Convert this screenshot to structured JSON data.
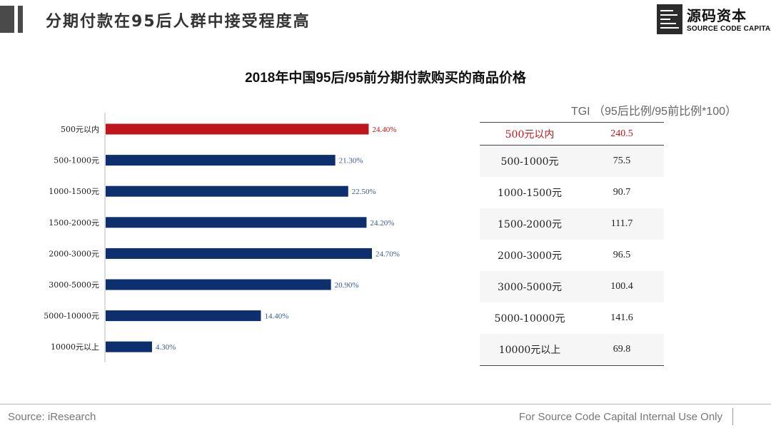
{
  "header": {
    "title": "分期付款在95后人群中接受程度高",
    "logo_cn": "源码资本",
    "logo_en": "SOURCE CODE CAPITAL"
  },
  "chart_data": {
    "type": "bar",
    "orientation": "horizontal",
    "title": "2018年中国95后/95前分期付款购买的商品价格",
    "categories": [
      "500元以内",
      "500-1000元",
      "1000-1500元",
      "1500-2000元",
      "2000-3000元",
      "3000-5000元",
      "5000-10000元",
      "10000元以上"
    ],
    "values": [
      24.4,
      21.3,
      22.5,
      24.2,
      24.7,
      20.9,
      14.4,
      4.3
    ],
    "value_labels": [
      "24.40%",
      "21.30%",
      "22.50%",
      "24.20%",
      "24.70%",
      "20.90%",
      "14.40%",
      "4.30%"
    ],
    "highlight_index": 0,
    "colors": {
      "bar": "#0d2f6e",
      "highlight": "#c0141c",
      "axis": "#bbbbbb"
    },
    "xlim": [
      0,
      30
    ],
    "grid": false
  },
  "tgi_table": {
    "header": "TGI （95后比例/95前比例*100）",
    "rows": [
      {
        "category": "500元以内",
        "value": "240.5"
      },
      {
        "category": "500-1000元",
        "value": "75.5"
      },
      {
        "category": "1000-1500元",
        "value": "90.7"
      },
      {
        "category": "1500-2000元",
        "value": "111.7"
      },
      {
        "category": "2000-3000元",
        "value": "96.5"
      },
      {
        "category": "3000-5000元",
        "value": "100.4"
      },
      {
        "category": "5000-10000元",
        "value": "141.6"
      },
      {
        "category": "10000元以上",
        "value": "69.8"
      }
    ],
    "highlight_color": "#c0141c"
  },
  "footer": {
    "source": "Source: iResearch",
    "note": "For Source Code Capital Internal Use Only"
  }
}
